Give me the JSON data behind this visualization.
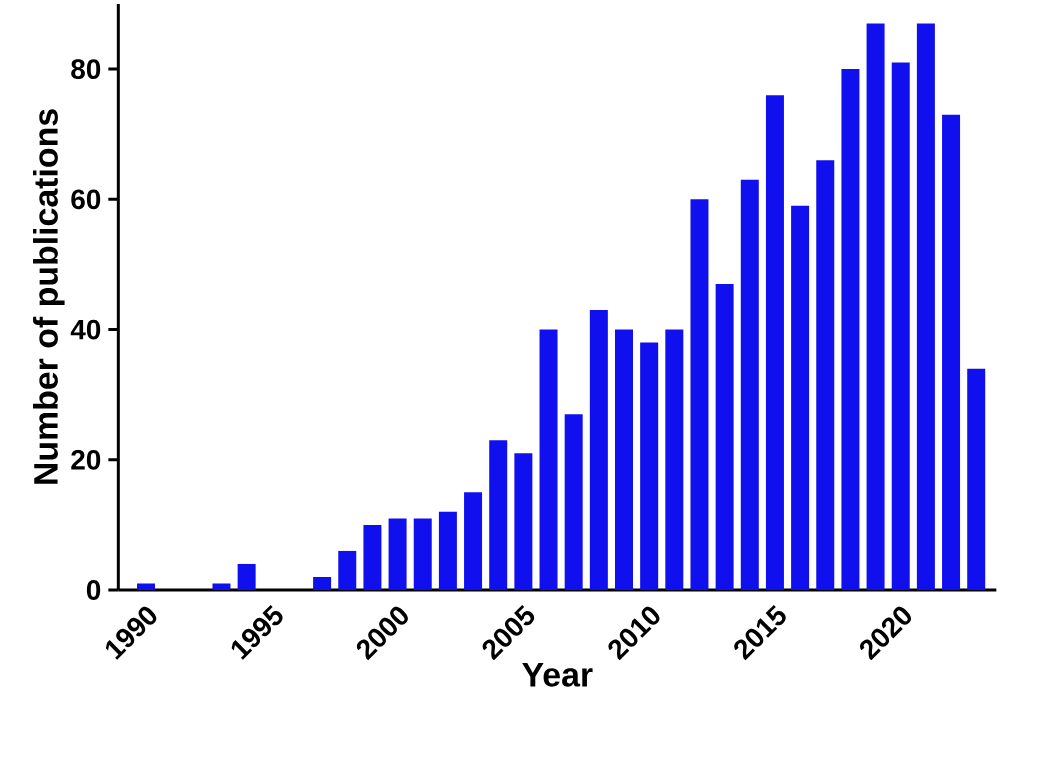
{
  "chart_data": {
    "type": "bar",
    "xlabel": "Year",
    "ylabel": "Number of publications",
    "categories": [
      "1990",
      null,
      null,
      null,
      null,
      "1995",
      null,
      null,
      null,
      null,
      "2000",
      null,
      null,
      null,
      null,
      "2005",
      null,
      null,
      null,
      null,
      "2010",
      null,
      null,
      null,
      null,
      "2015",
      null,
      null,
      null,
      null,
      "2020",
      null,
      null,
      null
    ],
    "values": [
      1,
      0,
      0,
      1,
      4,
      0,
      0,
      2,
      6,
      10,
      11,
      11,
      12,
      15,
      23,
      21,
      40,
      27,
      43,
      40,
      38,
      40,
      60,
      47,
      63,
      76,
      59,
      66,
      80,
      87,
      81,
      87,
      73,
      34
    ],
    "color": "#1010ee",
    "ylim": [
      0,
      90
    ],
    "yticks": [
      0,
      20,
      40,
      60,
      80
    ]
  }
}
